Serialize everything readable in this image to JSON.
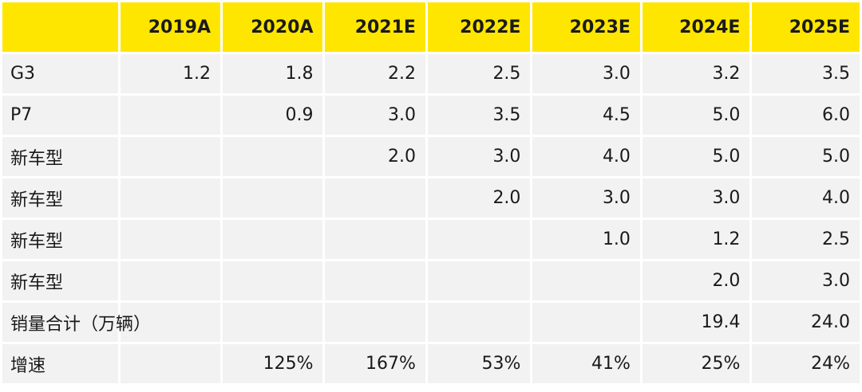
{
  "chart_data": {
    "type": "table",
    "columns": [
      "",
      "2019A",
      "2020A",
      "2021E",
      "2022E",
      "2023E",
      "2024E",
      "2025E"
    ],
    "rows": [
      {
        "label": "G3",
        "cells": [
          "1.2",
          "1.8",
          "2.2",
          "2.5",
          "3.0",
          "3.2",
          "3.5"
        ]
      },
      {
        "label": "P7",
        "cells": [
          "",
          "0.9",
          "3.0",
          "3.5",
          "4.5",
          "5.0",
          "6.0"
        ]
      },
      {
        "label": "新车型",
        "cells": [
          "",
          "",
          "2.0",
          "3.0",
          "4.0",
          "5.0",
          "5.0"
        ]
      },
      {
        "label": "新车型",
        "cells": [
          "",
          "",
          "",
          "2.0",
          "3.0",
          "3.0",
          "4.0"
        ]
      },
      {
        "label": "新车型",
        "cells": [
          "",
          "",
          "",
          "",
          "1.0",
          "1.2",
          "2.5"
        ]
      },
      {
        "label": "新车型",
        "cells": [
          "",
          "",
          "",
          "",
          "",
          "2.0",
          "3.0"
        ]
      },
      {
        "label": "销量合计（万辆）",
        "cells": [
          "",
          "",
          "",
          "",
          "",
          "19.4",
          "24.0"
        ]
      },
      {
        "label": "增速",
        "cells": [
          "",
          "125%",
          "167%",
          "53%",
          "41%",
          "25%",
          "24%"
        ]
      }
    ]
  },
  "colors": {
    "header_bg": "#ffe600",
    "cell_bg": "#f2f2f2",
    "text": "#1a1a1a"
  }
}
